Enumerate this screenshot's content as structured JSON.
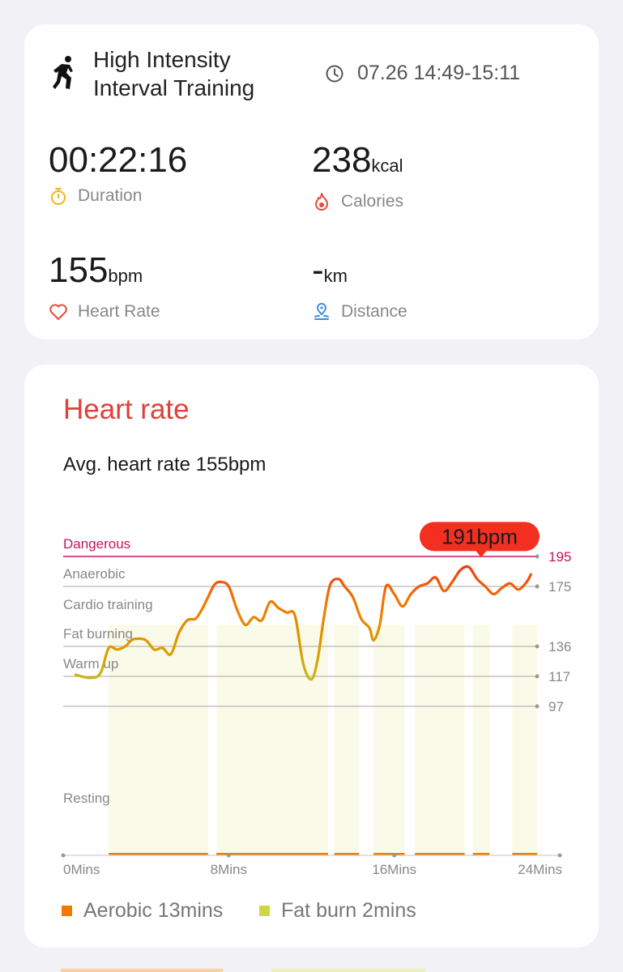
{
  "activity": {
    "title_line1": "High Intensity",
    "title_line2": "Interval Training",
    "icon": "hiit-running-figure-icon",
    "time_range": "07.26 14:49-15:11"
  },
  "metrics": {
    "duration": {
      "value": "00:22:16",
      "label": "Duration",
      "icon": "stopwatch-icon",
      "color": "#f2b51d"
    },
    "calories": {
      "value": "238",
      "unit": "kcal",
      "label": "Calories",
      "icon": "flame-icon",
      "color": "#e84b3a"
    },
    "heart_rate": {
      "value": "155",
      "unit": "bpm",
      "label": "Heart Rate",
      "icon": "heart-outline-icon",
      "color": "#e84b3a"
    },
    "distance": {
      "value": "-",
      "unit": "km",
      "label": "Distance",
      "icon": "location-pin-icon",
      "color": "#3d8de0"
    }
  },
  "heart_rate_card": {
    "title": "Heart rate",
    "avg_text": "Avg. heart rate 155bpm",
    "title_color": "#e0403a"
  },
  "chart_data": {
    "type": "line",
    "xlabel": "",
    "ylabel": "",
    "x_ticks": [
      "0Mins",
      "8Mins",
      "16Mins",
      "24Mins"
    ],
    "xlim": [
      0,
      24
    ],
    "zones": [
      {
        "name": "Dangerous",
        "threshold": 195,
        "color": "#c2185b"
      },
      {
        "name": "Anaerobic",
        "threshold": 175,
        "color": "#999999"
      },
      {
        "name": "Cardio training",
        "threshold": null
      },
      {
        "name": "Fat burning",
        "threshold": 136
      },
      {
        "name": "Warm up",
        "threshold": 117
      },
      {
        "name": "Resting",
        "threshold": 97
      }
    ],
    "y_ticks": [
      195,
      175,
      136,
      117,
      97
    ],
    "peak_label": "191bpm",
    "peak": {
      "x": 20.2,
      "y": 191
    },
    "series": [
      {
        "x": [
          0.6,
          1.3,
          1.8,
          2.2,
          2.6,
          3.0,
          3.3,
          3.6,
          4.0,
          4.4,
          4.8,
          5.2,
          5.6,
          6.0,
          6.4,
          6.7,
          7.0,
          7.3,
          7.6,
          8.0,
          8.4,
          8.8,
          9.2,
          9.6,
          10.0,
          10.4,
          10.8,
          11.2,
          11.6,
          12.0,
          12.3,
          12.6,
          12.9,
          13.3,
          13.6,
          14.0,
          14.4,
          14.8,
          15.0,
          15.3,
          15.6,
          16.0,
          16.4,
          16.8,
          17.2,
          17.6,
          18.0,
          18.4,
          18.8,
          19.2,
          19.6,
          20.0,
          20.4,
          20.8,
          21.2,
          21.6,
          22.0,
          22.4,
          22.6
        ],
        "y": [
          118,
          116,
          119,
          135,
          134,
          136,
          140,
          141,
          140,
          134,
          135,
          131,
          145,
          153,
          154,
          160,
          168,
          176,
          178,
          175,
          160,
          150,
          155,
          153,
          165,
          161,
          158,
          156,
          125,
          115,
          128,
          155,
          176,
          180,
          175,
          168,
          154,
          148,
          140,
          150,
          175,
          170,
          162,
          170,
          175,
          177,
          181,
          172,
          178,
          186,
          188,
          180,
          175,
          170,
          174,
          177,
          173,
          178,
          183
        ]
      }
    ],
    "activity_bands": [
      {
        "x0": 2.2,
        "x1": 7.0,
        "zone": "Aerobic"
      },
      {
        "x0": 7.4,
        "x1": 12.8,
        "zone": "Aerobic"
      },
      {
        "x0": 13.1,
        "x1": 14.3,
        "zone": "Aerobic"
      },
      {
        "x0": 15.0,
        "x1": 16.5,
        "zone": "Aerobic"
      },
      {
        "x0": 17.0,
        "x1": 19.4,
        "zone": "Aerobic"
      },
      {
        "x0": 19.8,
        "x1": 20.6,
        "zone": "Aerobic"
      },
      {
        "x0": 21.7,
        "x1": 22.9,
        "zone": "Aerobic"
      }
    ],
    "legend": [
      {
        "label": "Aerobic 13mins",
        "color": "#f07a00"
      },
      {
        "label": "Fat burn 2mins",
        "color": "#cfd640"
      }
    ]
  }
}
